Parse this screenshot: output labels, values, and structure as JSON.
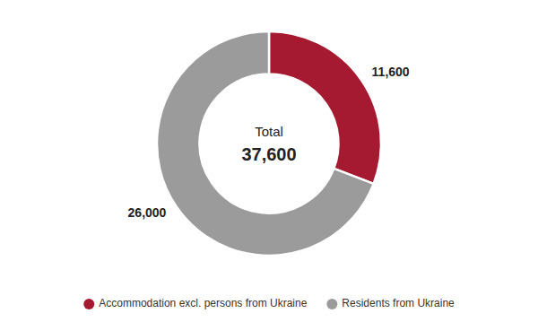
{
  "chart_data": {
    "type": "pie",
    "donut": true,
    "categories": [
      "Accommodation excl. persons from Ukraine",
      "Residents from Ukraine"
    ],
    "values": [
      11600,
      26000
    ],
    "value_labels": [
      "11,600",
      "26,000"
    ],
    "colors": [
      "#a51931",
      "#9b9b9b"
    ],
    "data_labels": true,
    "annotations": [
      "Total",
      "37,600"
    ],
    "legend": "bottom"
  }
}
